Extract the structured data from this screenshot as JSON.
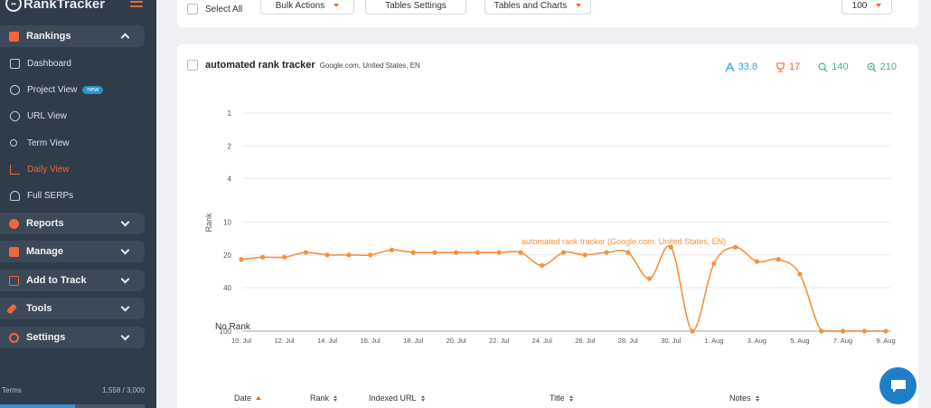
{
  "app": {
    "logo_text": "RankTracker"
  },
  "sidebar": {
    "rankings": {
      "label": "Rankings",
      "color": "#f0673a"
    },
    "rankings_items": [
      {
        "label": "Dashboard",
        "icon": "dashboard-icon"
      },
      {
        "label": "Project View",
        "icon": "project-view-icon",
        "badge": "new"
      },
      {
        "label": "URL View",
        "icon": "link-icon"
      },
      {
        "label": "Term View",
        "icon": "key-icon"
      },
      {
        "label": "Daily View",
        "icon": "chart-icon",
        "active": true
      },
      {
        "label": "Full SERPs",
        "icon": "serp-icon"
      }
    ],
    "groups": [
      {
        "label": "Reports",
        "color": "#f0673a",
        "icon": "reports-icon"
      },
      {
        "label": "Manage",
        "color": "#f0673a",
        "icon": "manage-icon"
      },
      {
        "label": "Add to Track",
        "color": "#f0673a",
        "icon": "add-icon"
      },
      {
        "label": "Tools",
        "color": "#f0673a",
        "icon": "tools-icon"
      },
      {
        "label": "Settings",
        "color": "#f0673a",
        "icon": "settings-icon"
      }
    ],
    "terms": {
      "label": "Terms",
      "usage": "1,558 / 3,000",
      "used": 1558,
      "total": 3000
    }
  },
  "toolbar": {
    "select_all": "Select All",
    "bulk_actions": "Bulk Actions",
    "tables_settings": "Tables Settings",
    "tables_and_charts": "Tables and Charts",
    "page_size": "100"
  },
  "keyword": {
    "title": "automated rank tracker",
    "subtitle": "Google.com, United States, EN",
    "stats": [
      {
        "value": "33.8",
        "icon": "rank-avg-icon",
        "color": "#3aa3c8"
      },
      {
        "value": "17",
        "icon": "trophy-icon",
        "color": "#f0673a"
      },
      {
        "value": "140",
        "icon": "search-volume-icon",
        "color": "#4bb08a"
      },
      {
        "value": "210",
        "icon": "search-results-icon",
        "color": "#4bb08a"
      }
    ]
  },
  "chart_data": {
    "type": "line",
    "ylabel": "Rank",
    "y_ticks": [
      "1",
      "2",
      "4",
      "10",
      "20",
      "40",
      "100"
    ],
    "y_scale": "log",
    "y_reversed": true,
    "no_rank_label": "No Rank",
    "x_tick_labels": [
      "10. Jul",
      "12. Jul",
      "14. Jul",
      "16. Jul",
      "18. Jul",
      "20. Jul",
      "22. Jul",
      "24. Jul",
      "26. Jul",
      "28. Jul",
      "30. Jul",
      "1. Aug",
      "3. Aug",
      "5. Aug",
      "7. Aug",
      "9. Aug"
    ],
    "series": [
      {
        "name": "automated rank tracker (Google.com, United States, EN)",
        "color": "#f5913e",
        "x": [
          "10. Jul",
          "11. Jul",
          "12. Jul",
          "13. Jul",
          "14. Jul",
          "15. Jul",
          "16. Jul",
          "17. Jul",
          "18. Jul",
          "19. Jul",
          "20. Jul",
          "21. Jul",
          "22. Jul",
          "23. Jul",
          "24. Jul",
          "25. Jul",
          "26. Jul",
          "27. Jul",
          "28. Jul",
          "29. Jul",
          "30. Jul",
          "31. Jul",
          "1. Aug",
          "2. Aug",
          "3. Aug",
          "4. Aug",
          "5. Aug",
          "6. Aug",
          "7. Aug",
          "8. Aug",
          "9. Aug"
        ],
        "values": [
          22,
          21,
          21,
          19,
          20,
          20,
          20,
          18,
          19,
          19,
          19,
          19,
          19,
          19,
          25,
          19,
          20,
          19,
          19,
          33,
          17,
          null,
          24,
          17,
          23,
          22,
          30,
          null,
          null,
          null,
          null
        ]
      }
    ]
  },
  "table": {
    "columns": [
      {
        "label": "Date",
        "sort": "asc"
      },
      {
        "label": "Rank",
        "sort": "both"
      },
      {
        "label": "Indexed URL",
        "sort": "both"
      },
      {
        "label": "Title",
        "sort": "both"
      },
      {
        "label": "Notes",
        "sort": "both"
      }
    ]
  }
}
